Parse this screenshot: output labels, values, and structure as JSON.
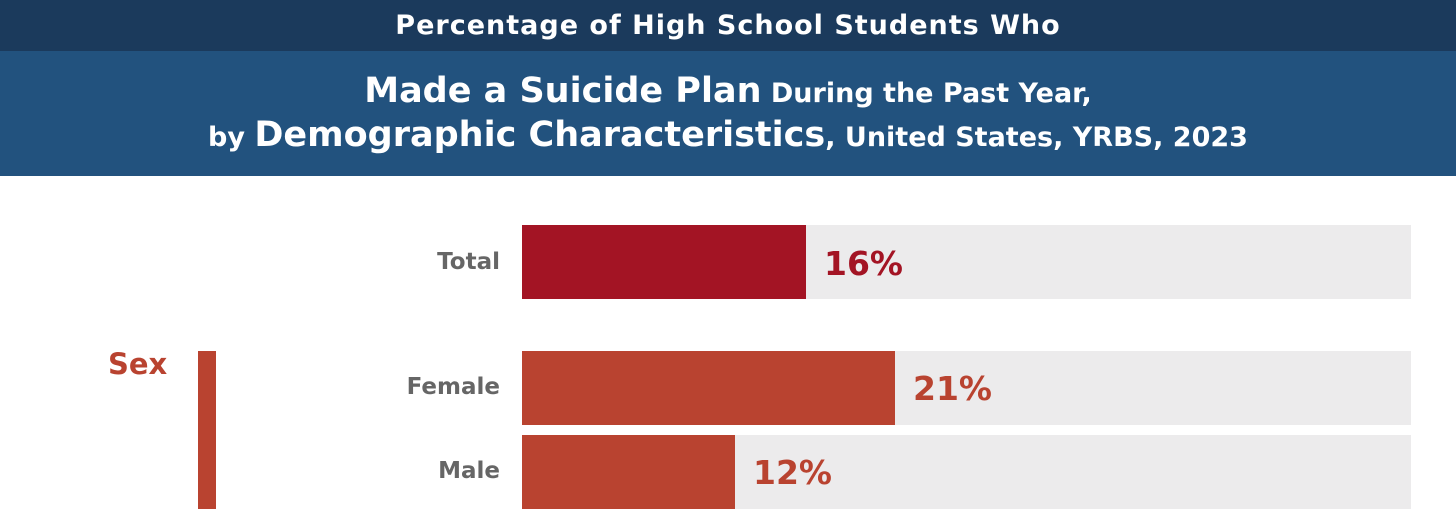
{
  "title": {
    "line1": "Percentage of High School Students Who",
    "line2_emph": "Made a Suicide Plan",
    "line2_rest": " During the Past Year,",
    "line3_prefix": "by ",
    "line3_emph": "Demographic Characteristics",
    "line3_rest": ", United States, YRBS, 2023"
  },
  "colors": {
    "header_dark": "#1b3a5c",
    "header_main": "#22527e",
    "total_bar": "#a31424",
    "sex_bar": "#b94330",
    "track": "#ecebec",
    "row_label": "#666666"
  },
  "chart_data": {
    "type": "bar",
    "orientation": "horizontal",
    "xlim": [
      0,
      50
    ],
    "grid": false,
    "groups": [
      {
        "name": "",
        "categories": [
          "Total"
        ],
        "values": [
          16
        ]
      },
      {
        "name": "Sex",
        "categories": [
          "Female",
          "Male"
        ],
        "values": [
          21,
          12
        ]
      }
    ],
    "value_labels": [
      "16%",
      "21%",
      "12%"
    ]
  }
}
